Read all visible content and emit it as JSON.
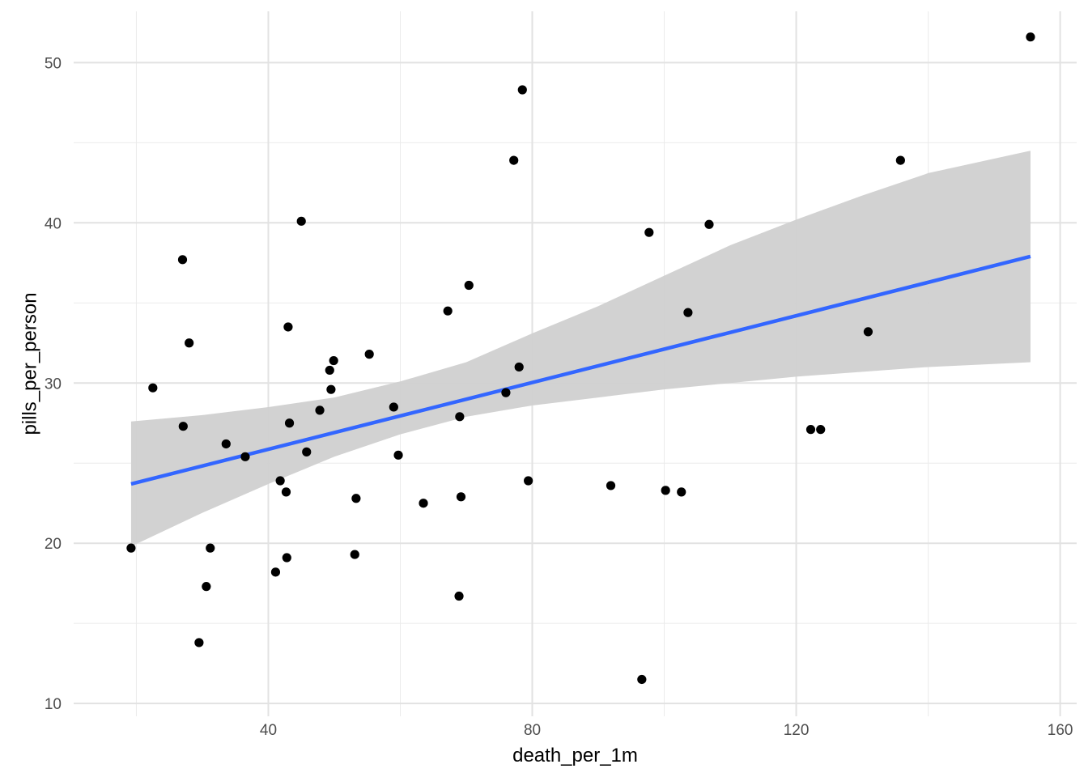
{
  "chart_data": {
    "type": "scatter",
    "title": "",
    "xlabel": "death_per_1m",
    "ylabel": "pills_per_person",
    "xlim": [
      10.5,
      162.5
    ],
    "ylim": [
      9.2,
      53.2
    ],
    "x_ticks": [
      40,
      80,
      120,
      160
    ],
    "y_ticks": [
      10,
      20,
      30,
      40,
      50
    ],
    "grid": true,
    "points": [
      [
        155.5,
        51.6
      ],
      [
        78.5,
        48.3
      ],
      [
        77.2,
        43.9
      ],
      [
        135.8,
        43.9
      ],
      [
        45.0,
        40.1
      ],
      [
        106.8,
        39.9
      ],
      [
        97.7,
        39.4
      ],
      [
        27.0,
        37.7
      ],
      [
        70.4,
        36.1
      ],
      [
        67.2,
        34.5
      ],
      [
        103.6,
        34.4
      ],
      [
        43.0,
        33.5
      ],
      [
        130.9,
        33.2
      ],
      [
        28.0,
        32.5
      ],
      [
        55.3,
        31.8
      ],
      [
        49.9,
        31.4
      ],
      [
        78.0,
        31.0
      ],
      [
        49.3,
        30.8
      ],
      [
        22.5,
        29.7
      ],
      [
        49.5,
        29.6
      ],
      [
        76.0,
        29.4
      ],
      [
        59.0,
        28.5
      ],
      [
        47.8,
        28.3
      ],
      [
        69.0,
        27.9
      ],
      [
        43.2,
        27.5
      ],
      [
        27.1,
        27.3
      ],
      [
        122.2,
        27.1
      ],
      [
        123.7,
        27.1
      ],
      [
        33.6,
        26.2
      ],
      [
        45.8,
        25.7
      ],
      [
        59.7,
        25.5
      ],
      [
        36.5,
        25.4
      ],
      [
        41.8,
        23.9
      ],
      [
        79.4,
        23.9
      ],
      [
        91.9,
        23.6
      ],
      [
        100.2,
        23.3
      ],
      [
        42.7,
        23.2
      ],
      [
        102.6,
        23.2
      ],
      [
        69.2,
        22.9
      ],
      [
        53.3,
        22.8
      ],
      [
        63.5,
        22.5
      ],
      [
        19.2,
        19.7
      ],
      [
        31.2,
        19.7
      ],
      [
        53.1,
        19.3
      ],
      [
        42.8,
        19.1
      ],
      [
        41.1,
        18.2
      ],
      [
        30.6,
        17.3
      ],
      [
        68.9,
        16.7
      ],
      [
        29.5,
        13.8
      ],
      [
        96.6,
        11.5
      ]
    ],
    "trend_line": {
      "color": "#3366ff",
      "x": [
        19.2,
        155.5
      ],
      "y": [
        23.7,
        37.9
      ]
    },
    "confidence_band": {
      "color": "#d0d0d0",
      "x": [
        19.2,
        30,
        40,
        50,
        60,
        70,
        80,
        90,
        100,
        110,
        120,
        130,
        140,
        155.5
      ],
      "lower": [
        19.8,
        21.9,
        23.7,
        25.4,
        26.8,
        27.9,
        28.6,
        29.1,
        29.6,
        30.0,
        30.4,
        30.7,
        31.0,
        31.3
      ],
      "upper": [
        27.6,
        28.0,
        28.5,
        29.1,
        30.1,
        31.3,
        33.1,
        34.8,
        36.7,
        38.6,
        40.2,
        41.7,
        43.1,
        44.5
      ]
    },
    "point_color": "#000000"
  }
}
